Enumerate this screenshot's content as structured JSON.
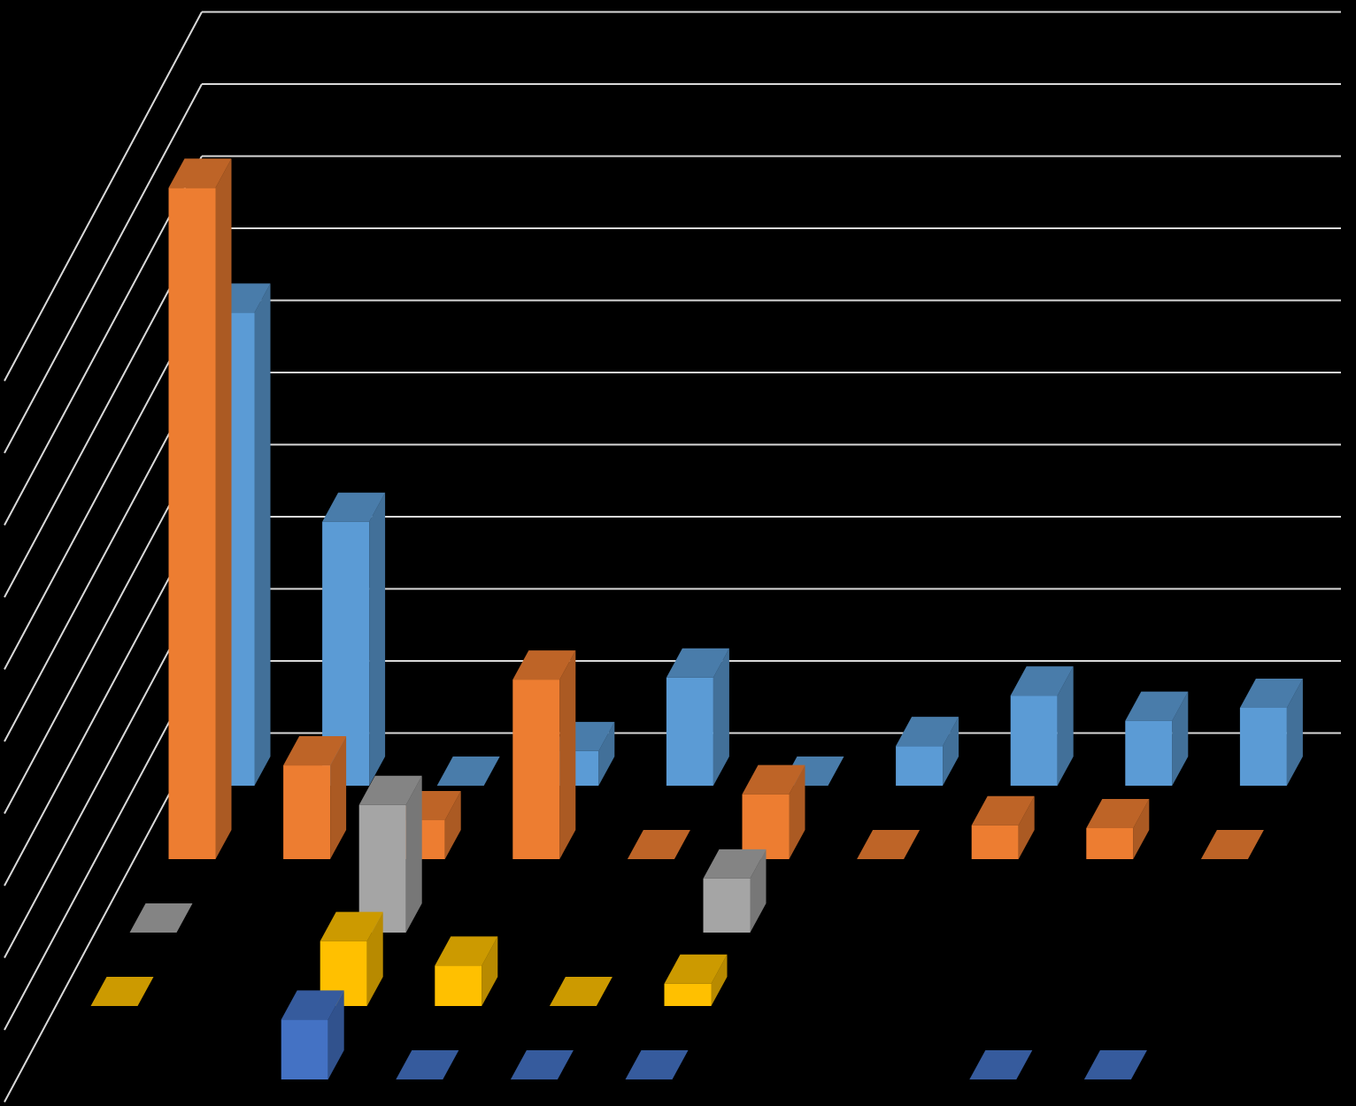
{
  "chart_data": {
    "type": "bar3d",
    "categories": [
      null,
      null,
      null,
      null,
      null,
      null,
      null,
      null,
      null,
      null
    ],
    "ylim": [
      0,
      11
    ],
    "yticks": [
      1,
      2,
      3,
      4,
      5,
      6,
      7,
      8,
      9,
      10,
      11
    ],
    "grid": true,
    "series": [
      {
        "color": "#5b9bd5",
        "values": [
          6.56,
          3.66,
          0,
          0.48,
          1.5,
          0,
          0.55,
          1.25,
          0.9,
          1.08
        ]
      },
      {
        "color": "#ed7d31",
        "values": [
          9.31,
          1.3,
          0.54,
          2.49,
          0,
          0.9,
          0,
          0.47,
          0.43,
          0
        ]
      },
      {
        "color": "#a5a5a5",
        "values": [
          0,
          null,
          1.77,
          null,
          null,
          0.75,
          null,
          null,
          null,
          null
        ]
      },
      {
        "color": "#ffc000",
        "values": [
          0,
          null,
          0.9,
          0.56,
          0,
          0.31,
          null,
          null,
          null,
          null
        ]
      },
      {
        "color": "#4472c4",
        "values": [
          null,
          null,
          0.83,
          0,
          0,
          0,
          null,
          null,
          0,
          0
        ]
      }
    ]
  }
}
